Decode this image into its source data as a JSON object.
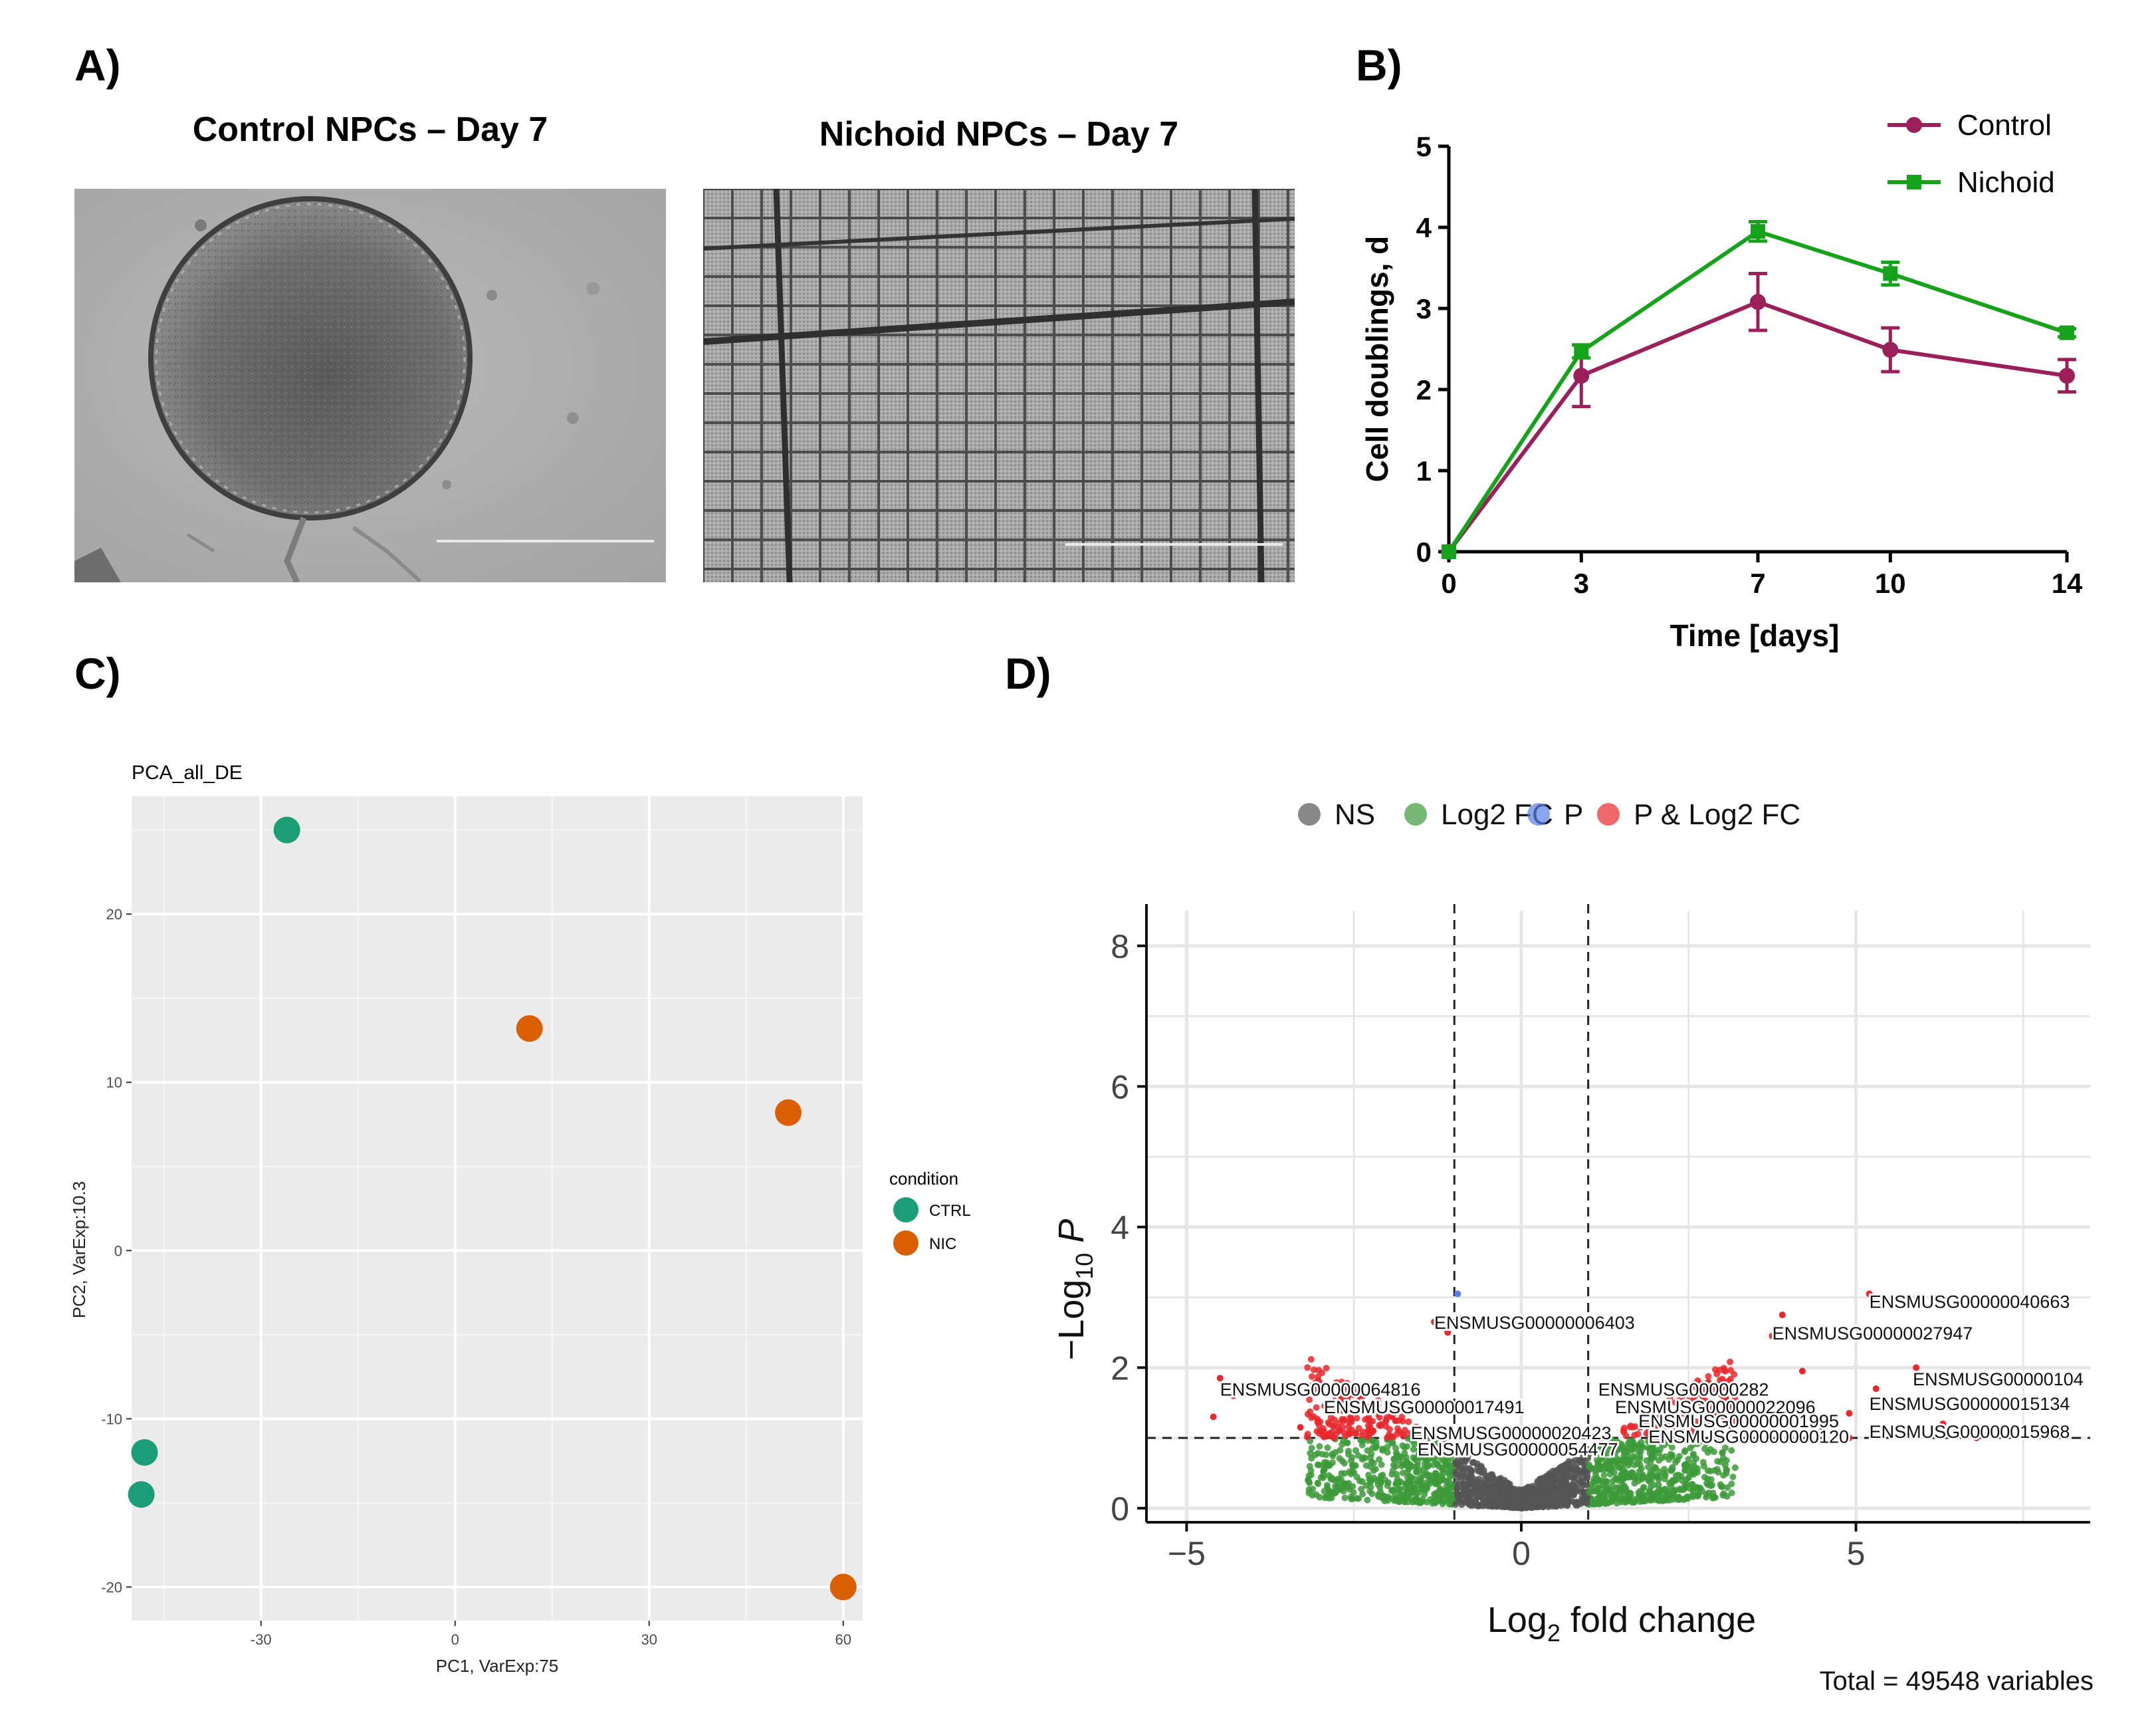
{
  "panels": {
    "A": {
      "label": "A)",
      "left_title": "Control NPCs – Day 7",
      "right_title": "Nichoid NPCs – Day 7"
    },
    "B": {
      "label": "B)"
    },
    "C": {
      "label": "C)"
    },
    "D": {
      "label": "D)"
    }
  },
  "chart_data": [
    {
      "id": "B",
      "type": "line",
      "title": "",
      "xlabel": "Time [days]",
      "ylabel": "Cell doublings, d",
      "x": [
        0,
        3,
        7,
        10,
        14
      ],
      "xlim": [
        0,
        14
      ],
      "ylim": [
        0,
        5
      ],
      "xticks": [
        "0",
        "3",
        "7",
        "10",
        "14"
      ],
      "yticks": [
        "0",
        "1",
        "2",
        "3",
        "4",
        "5"
      ],
      "series": [
        {
          "name": "Control",
          "color": "#9b1f5a",
          "marker": "circle",
          "values": [
            0,
            2.17,
            3.08,
            2.49,
            2.17
          ],
          "errors": [
            0,
            0.38,
            0.35,
            0.27,
            0.2
          ]
        },
        {
          "name": "Nichoid",
          "color": "#17a21b",
          "marker": "square",
          "values": [
            0,
            2.47,
            3.95,
            3.43,
            2.7
          ],
          "errors": [
            0,
            0.08,
            0.12,
            0.14,
            0.05
          ]
        }
      ],
      "legend": "top-right"
    },
    {
      "id": "C",
      "type": "scatter",
      "title": "PCA_all_DE",
      "xlabel": "PC1, VarExp:75",
      "ylabel": "PC2, VarExp:10.3",
      "xlim": [
        -50,
        63
      ],
      "ylim": [
        -22,
        27
      ],
      "xticks": [
        "-30",
        "0",
        "30",
        "60"
      ],
      "yticks": [
        "-20",
        "-10",
        "0",
        "10",
        "20"
      ],
      "legend_title": "condition",
      "series": [
        {
          "name": "CTRL",
          "color": "#1b9e77",
          "points": [
            [
              -26,
              25
            ],
            [
              -48,
              -12
            ],
            [
              -48.5,
              -14.5
            ]
          ]
        },
        {
          "name": "NIC",
          "color": "#d95f02",
          "points": [
            [
              11.5,
              13.2
            ],
            [
              51.5,
              8.2
            ],
            [
              60,
              -20
            ]
          ]
        }
      ],
      "legend": "right"
    },
    {
      "id": "D",
      "type": "scatter",
      "title": "",
      "xlabel": "Log2 fold change",
      "ylabel": "−Log10 P",
      "xlim": [
        -5.6,
        8.5
      ],
      "ylim": [
        -0.2,
        8.5
      ],
      "xticks": [
        "−5",
        "0",
        "5"
      ],
      "yticks": [
        "0",
        "2",
        "4",
        "6",
        "8"
      ],
      "fc_cutoff": 1,
      "p_cutoff": 1,
      "legend_items": [
        {
          "name": "NS",
          "color": "#555555"
        },
        {
          "name": "Log2 FC",
          "color": "#3d9a3a"
        },
        {
          "name": "P",
          "color": "#5a7fe6"
        },
        {
          "name": "P & Log2 FC",
          "color": "#e8282d"
        }
      ],
      "gene_labels": [
        {
          "text": "ENSMUSG00000006403",
          "x": -1.3,
          "y": 2.55
        },
        {
          "text": "ENSMUSG00000040663",
          "x": 5.2,
          "y": 2.85
        },
        {
          "text": "ENSMUSG00000027947",
          "x": 3.75,
          "y": 2.4
        },
        {
          "text": "ENSMUSG00000104",
          "x": 5.85,
          "y": 1.75
        },
        {
          "text": "ENSMUSG00000064816",
          "x": -4.5,
          "y": 1.6
        },
        {
          "text": "ENSMUSG00000282",
          "x": 1.15,
          "y": 1.6
        },
        {
          "text": "ENSMUSG00000015134",
          "x": 5.2,
          "y": 1.4
        },
        {
          "text": "ENSMUSG00000017491",
          "x": -2.95,
          "y": 1.35
        },
        {
          "text": "ENSMUSG00000022096",
          "x": 1.4,
          "y": 1.35
        },
        {
          "text": "ENSMUSG00000001995",
          "x": 1.75,
          "y": 1.15
        },
        {
          "text": "ENSMUSG00000020423",
          "x": -1.65,
          "y": 0.98
        },
        {
          "text": "ENSMUSG00000000120",
          "x": 1.9,
          "y": 0.93
        },
        {
          "text": "ENSMUSG00000015968",
          "x": 5.2,
          "y": 1.0
        },
        {
          "text": "ENSMUSG00000054477",
          "x": -1.55,
          "y": 0.75
        }
      ],
      "footer": "Total = 49548 variables",
      "legend": "top"
    }
  ]
}
